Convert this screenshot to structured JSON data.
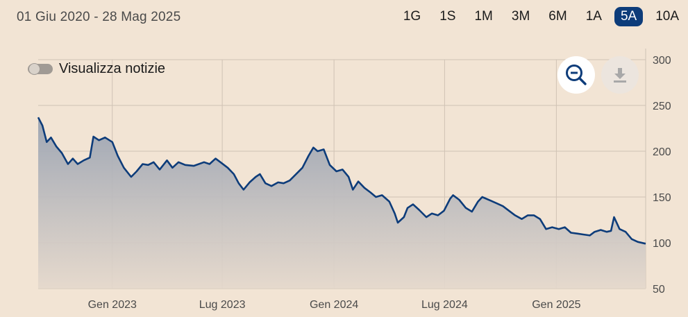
{
  "header": {
    "date_range": "01 Giu 2020 - 28 Mag 2025",
    "ranges": [
      "1G",
      "1S",
      "1M",
      "3M",
      "6M",
      "1A",
      "5A",
      "10A"
    ],
    "active_range": "5A"
  },
  "toggle": {
    "label": "Visualizza notizie",
    "on": false
  },
  "icons": {
    "zoom": "zoom-out-icon",
    "download": "download-icon"
  },
  "colors": {
    "line": "#0d3c7a",
    "active_range_bg": "#0d3c7a",
    "background": "#f2e4d4"
  },
  "chart_data": {
    "type": "area",
    "title": "",
    "xlabel": "",
    "ylabel": "",
    "ylim": [
      50,
      300
    ],
    "y_ticks": [
      50,
      100,
      150,
      200,
      250,
      300
    ],
    "x_ticks": [
      "Gen 2023",
      "Lug 2023",
      "Gen 2024",
      "Lug 2024",
      "Gen 2025"
    ],
    "x_tick_dates": [
      "2023-01-01",
      "2023-07-01",
      "2024-01-01",
      "2024-07-01",
      "2025-01-01"
    ],
    "x_range": [
      "2022-09-01",
      "2025-05-28"
    ],
    "grid": true,
    "series": [
      {
        "name": "",
        "points": [
          [
            "2022-09-01",
            237
          ],
          [
            "2022-09-08",
            228
          ],
          [
            "2022-09-15",
            210
          ],
          [
            "2022-09-22",
            215
          ],
          [
            "2022-10-01",
            205
          ],
          [
            "2022-10-10",
            198
          ],
          [
            "2022-10-20",
            186
          ],
          [
            "2022-10-28",
            192
          ],
          [
            "2022-11-05",
            186
          ],
          [
            "2022-11-15",
            190
          ],
          [
            "2022-11-25",
            193
          ],
          [
            "2022-12-01",
            216
          ],
          [
            "2022-12-10",
            212
          ],
          [
            "2022-12-20",
            215
          ],
          [
            "2023-01-01",
            210
          ],
          [
            "2023-01-10",
            195
          ],
          [
            "2023-01-20",
            182
          ],
          [
            "2023-02-01",
            172
          ],
          [
            "2023-02-10",
            178
          ],
          [
            "2023-02-20",
            186
          ],
          [
            "2023-03-01",
            185
          ],
          [
            "2023-03-10",
            188
          ],
          [
            "2023-03-20",
            180
          ],
          [
            "2023-04-01",
            190
          ],
          [
            "2023-04-10",
            182
          ],
          [
            "2023-04-20",
            188
          ],
          [
            "2023-05-01",
            185
          ],
          [
            "2023-05-15",
            184
          ],
          [
            "2023-06-01",
            188
          ],
          [
            "2023-06-10",
            186
          ],
          [
            "2023-06-20",
            192
          ],
          [
            "2023-06-28",
            188
          ],
          [
            "2023-07-10",
            182
          ],
          [
            "2023-07-20",
            175
          ],
          [
            "2023-07-28",
            165
          ],
          [
            "2023-08-05",
            158
          ],
          [
            "2023-08-15",
            166
          ],
          [
            "2023-08-25",
            172
          ],
          [
            "2023-09-01",
            175
          ],
          [
            "2023-09-10",
            165
          ],
          [
            "2023-09-20",
            162
          ],
          [
            "2023-10-01",
            166
          ],
          [
            "2023-10-10",
            165
          ],
          [
            "2023-10-20",
            168
          ],
          [
            "2023-11-01",
            176
          ],
          [
            "2023-11-10",
            182
          ],
          [
            "2023-11-20",
            195
          ],
          [
            "2023-11-28",
            204
          ],
          [
            "2023-12-05",
            200
          ],
          [
            "2023-12-15",
            202
          ],
          [
            "2023-12-25",
            185
          ],
          [
            "2024-01-05",
            178
          ],
          [
            "2024-01-15",
            180
          ],
          [
            "2024-01-25",
            172
          ],
          [
            "2024-02-01",
            158
          ],
          [
            "2024-02-10",
            167
          ],
          [
            "2024-02-20",
            160
          ],
          [
            "2024-03-01",
            155
          ],
          [
            "2024-03-10",
            150
          ],
          [
            "2024-03-20",
            152
          ],
          [
            "2024-04-01",
            145
          ],
          [
            "2024-04-10",
            132
          ],
          [
            "2024-04-15",
            122
          ],
          [
            "2024-04-25",
            128
          ],
          [
            "2024-05-01",
            138
          ],
          [
            "2024-05-10",
            142
          ],
          [
            "2024-05-20",
            136
          ],
          [
            "2024-06-01",
            128
          ],
          [
            "2024-06-10",
            132
          ],
          [
            "2024-06-20",
            130
          ],
          [
            "2024-06-30",
            135
          ],
          [
            "2024-07-10",
            148
          ],
          [
            "2024-07-15",
            152
          ],
          [
            "2024-07-25",
            147
          ],
          [
            "2024-08-05",
            138
          ],
          [
            "2024-08-15",
            134
          ],
          [
            "2024-08-25",
            145
          ],
          [
            "2024-09-01",
            150
          ],
          [
            "2024-09-15",
            146
          ],
          [
            "2024-09-25",
            143
          ],
          [
            "2024-10-05",
            140
          ],
          [
            "2024-10-15",
            135
          ],
          [
            "2024-10-25",
            130
          ],
          [
            "2024-11-05",
            126
          ],
          [
            "2024-11-15",
            130
          ],
          [
            "2024-11-25",
            130
          ],
          [
            "2024-12-05",
            126
          ],
          [
            "2024-12-15",
            115
          ],
          [
            "2024-12-25",
            117
          ],
          [
            "2025-01-05",
            115
          ],
          [
            "2025-01-15",
            117
          ],
          [
            "2025-01-25",
            111
          ],
          [
            "2025-02-05",
            110
          ],
          [
            "2025-02-15",
            109
          ],
          [
            "2025-02-25",
            108
          ],
          [
            "2025-03-05",
            112
          ],
          [
            "2025-03-15",
            114
          ],
          [
            "2025-03-25",
            112
          ],
          [
            "2025-04-01",
            113
          ],
          [
            "2025-04-06",
            128
          ],
          [
            "2025-04-15",
            115
          ],
          [
            "2025-04-25",
            112
          ],
          [
            "2025-05-05",
            104
          ],
          [
            "2025-05-15",
            101
          ],
          [
            "2025-05-28",
            99
          ]
        ]
      }
    ]
  }
}
